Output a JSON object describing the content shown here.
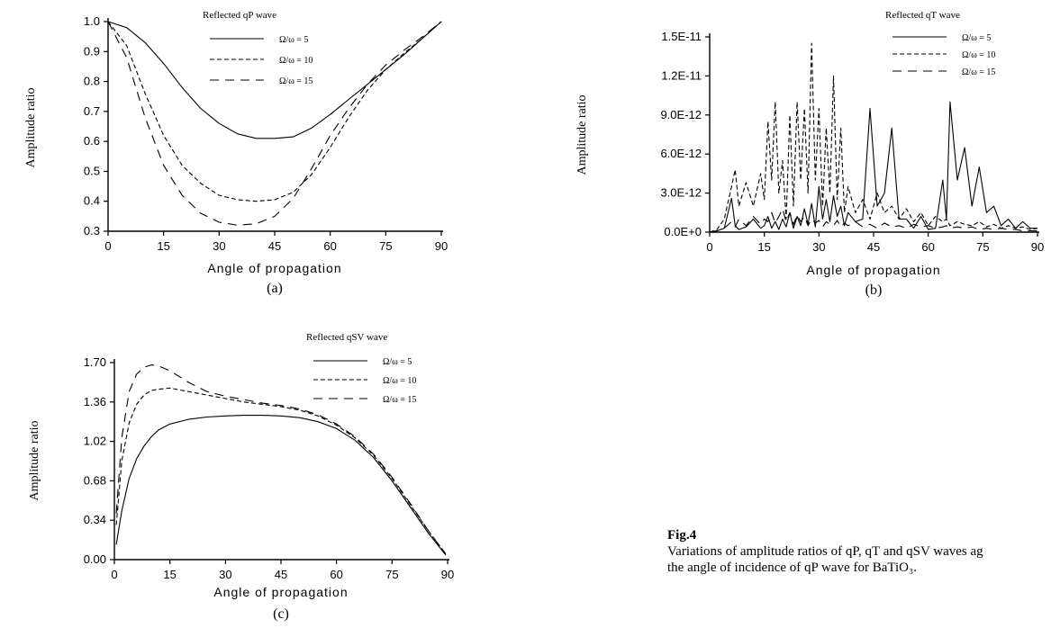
{
  "chart_data": [
    {
      "type": "line",
      "panel": "(a)",
      "xlabel": "Angle of propagation",
      "ylabel": "Amplitude ratio",
      "xlim": [
        0,
        90
      ],
      "ylim": [
        0.3,
        1.0
      ],
      "xticks": [
        "0",
        "15",
        "30",
        "45",
        "60",
        "75",
        "90"
      ],
      "yticks": [
        "0.3",
        "0.4",
        "0.5",
        "0.6",
        "0.7",
        "0.8",
        "0.9",
        "1.0"
      ],
      "legend_title": "Reflected qP wave",
      "legend_placement": "top-right",
      "x": [
        0,
        5,
        10,
        15,
        20,
        25,
        30,
        35,
        40,
        45,
        50,
        55,
        60,
        65,
        70,
        75,
        80,
        85,
        90
      ],
      "series": [
        {
          "name": "Ω/ω = 5",
          "style": "solid",
          "values": [
            1.0,
            0.98,
            0.93,
            0.86,
            0.78,
            0.71,
            0.66,
            0.625,
            0.61,
            0.61,
            0.615,
            0.645,
            0.69,
            0.74,
            0.79,
            0.84,
            0.89,
            0.945,
            1.0
          ]
        },
        {
          "name": "Ω/ω = 10",
          "style": "dashed",
          "values": [
            1.0,
            0.92,
            0.76,
            0.62,
            0.52,
            0.46,
            0.42,
            0.405,
            0.4,
            0.405,
            0.43,
            0.49,
            0.58,
            0.68,
            0.77,
            0.84,
            0.895,
            0.945,
            1.0
          ]
        },
        {
          "name": "Ω/ω = 15",
          "style": "longdash",
          "values": [
            1.0,
            0.88,
            0.68,
            0.52,
            0.42,
            0.36,
            0.33,
            0.32,
            0.325,
            0.35,
            0.41,
            0.51,
            0.62,
            0.71,
            0.79,
            0.855,
            0.905,
            0.95,
            1.0
          ]
        }
      ]
    },
    {
      "type": "line",
      "panel": "(b)",
      "xlabel": "Angle of propagation",
      "ylabel": "Amplitude ratio",
      "xlim": [
        0,
        90
      ],
      "ylim": [
        0,
        1.5e-11
      ],
      "xticks": [
        "0",
        "15",
        "30",
        "45",
        "60",
        "75",
        "90"
      ],
      "yticks": [
        "0.0E+0",
        "3.0E-12",
        "6.0E-12",
        "9.0E-12",
        "1.2E-11",
        "1.5E-11"
      ],
      "legend_title": "Reflected qT wave",
      "legend_placement": "top-right",
      "x": [
        0,
        2,
        4,
        6,
        7,
        8,
        10,
        12,
        14,
        15,
        16,
        17,
        18,
        19,
        20,
        21,
        22,
        23,
        24,
        25,
        26,
        27,
        28,
        29,
        30,
        31,
        32,
        33,
        34,
        35,
        36,
        37,
        38,
        40,
        42,
        44,
        46,
        48,
        50,
        52,
        54,
        56,
        58,
        60,
        62,
        64,
        65,
        66,
        68,
        70,
        72,
        74,
        76,
        78,
        80,
        82,
        84,
        86,
        88,
        90
      ],
      "series": [
        {
          "name": "Ω/ω = 5",
          "style": "solid",
          "values": [
            0,
            1e-13,
            3e-13,
            2.6e-12,
            5e-13,
            2e-13,
            4e-13,
            1e-12,
            3e-13,
            5e-13,
            1.2e-12,
            3e-13,
            8e-13,
            2e-13,
            1e-12,
            4e-13,
            1.5e-12,
            3e-13,
            1.2e-12,
            5e-13,
            1.8e-12,
            6e-13,
            2.2e-12,
            4e-13,
            3.5e-12,
            1e-12,
            2.5e-12,
            8e-13,
            2.8e-12,
            1.2e-12,
            2e-12,
            5e-13,
            1.5e-12,
            8e-13,
            1e-12,
            9.5e-12,
            2e-12,
            3e-12,
            8e-12,
            1e-12,
            1e-12,
            3e-13,
            1.2e-12,
            2e-13,
            3e-13,
            4e-12,
            1e-12,
            1e-11,
            4e-12,
            6.5e-12,
            2e-12,
            5e-12,
            1.5e-12,
            2e-12,
            5e-13,
            1e-12,
            3e-13,
            8e-13,
            3e-13,
            3e-13
          ]
        },
        {
          "name": "Ω/ω = 10",
          "style": "dashed",
          "values": [
            0,
            2e-13,
            1e-12,
            3.5e-12,
            4.8e-12,
            2e-12,
            3.8e-12,
            2e-12,
            4.5e-12,
            2.5e-12,
            8.5e-12,
            4e-12,
            1e-11,
            3e-12,
            5.5e-12,
            1e-12,
            9e-12,
            2e-12,
            1e-11,
            4e-12,
            9.5e-12,
            3e-12,
            1.45e-11,
            4e-12,
            9.5e-12,
            2e-12,
            8e-12,
            3e-12,
            1.2e-11,
            2.5e-12,
            8e-12,
            1.5e-12,
            3.5e-12,
            1.5e-12,
            2.5e-12,
            1e-12,
            3e-12,
            1.5e-12,
            2e-12,
            1e-12,
            1.8e-12,
            8e-13,
            1.5e-12,
            5e-13,
            1.2e-12,
            8e-13,
            1e-12,
            5e-13,
            8e-13,
            6e-13,
            5e-13,
            8e-13,
            4e-13,
            6e-13,
            3e-13,
            5e-13,
            3e-13,
            4e-13,
            2e-13,
            3e-13
          ]
        },
        {
          "name": "Ω/ω = 15",
          "style": "longdash",
          "values": [
            0,
            1e-13,
            3e-13,
            8e-13,
            4e-13,
            1e-12,
            5e-13,
            1.2e-12,
            6e-13,
            1e-12,
            8e-13,
            1.5e-12,
            7e-13,
            1.2e-12,
            1.8e-12,
            8e-13,
            1.5e-12,
            6e-13,
            1.3e-12,
            8e-13,
            1.2e-12,
            5e-13,
            1e-12,
            7e-13,
            9e-13,
            4e-13,
            8e-13,
            6e-13,
            5e-13,
            9e-13,
            4e-13,
            7e-13,
            5e-13,
            8e-13,
            4e-13,
            6e-13,
            3e-13,
            7e-13,
            4e-13,
            5e-13,
            3e-13,
            6e-13,
            4e-13,
            5e-13,
            3e-13,
            4e-13,
            5e-13,
            3e-13,
            4e-13,
            3e-13,
            4e-13,
            2e-13,
            3e-13,
            2e-13,
            3e-13,
            2e-13,
            2e-13,
            1e-13,
            1e-13,
            1e-13
          ]
        }
      ]
    },
    {
      "type": "line",
      "panel": "(c)",
      "xlabel": "Angle of propagation",
      "ylabel": "Amplitude ratio",
      "xlim": [
        0,
        90
      ],
      "ylim": [
        0,
        1.7
      ],
      "xticks": [
        "0",
        "15",
        "30",
        "45",
        "60",
        "75",
        "90"
      ],
      "yticks": [
        "0.00",
        "0.34",
        "0.68",
        "1.02",
        "1.36",
        "1.70"
      ],
      "legend_title": "Reflected qSV wave",
      "legend_placement": "top-right",
      "x": [
        0.5,
        2,
        4,
        6,
        8,
        10,
        12,
        15,
        20,
        25,
        30,
        35,
        40,
        45,
        50,
        55,
        60,
        65,
        70,
        75,
        80,
        85,
        89.5
      ],
      "series": [
        {
          "name": "Ω/ω = 5",
          "style": "solid",
          "values": [
            0.13,
            0.42,
            0.7,
            0.87,
            0.98,
            1.06,
            1.12,
            1.17,
            1.21,
            1.23,
            1.24,
            1.245,
            1.245,
            1.24,
            1.225,
            1.19,
            1.13,
            1.03,
            0.88,
            0.68,
            0.45,
            0.22,
            0.04
          ]
        },
        {
          "name": "Ω/ω = 10",
          "style": "dashed",
          "values": [
            0.3,
            0.85,
            1.18,
            1.34,
            1.42,
            1.46,
            1.47,
            1.48,
            1.45,
            1.42,
            1.39,
            1.36,
            1.34,
            1.32,
            1.29,
            1.24,
            1.16,
            1.05,
            0.9,
            0.7,
            0.47,
            0.24,
            0.05
          ]
        },
        {
          "name": "Ω/ω = 15",
          "style": "longdash",
          "values": [
            0.4,
            1.05,
            1.45,
            1.6,
            1.66,
            1.68,
            1.67,
            1.63,
            1.53,
            1.45,
            1.41,
            1.38,
            1.35,
            1.33,
            1.3,
            1.25,
            1.17,
            1.06,
            0.91,
            0.71,
            0.48,
            0.24,
            0.05
          ]
        }
      ]
    }
  ],
  "caption": {
    "fig_label": "Fig.4",
    "text_line1": "Variations of amplitude ratios of qP, qT and qSV waves ag",
    "text_line2": "the angle of incidence of qP wave for BaTiO₃."
  }
}
